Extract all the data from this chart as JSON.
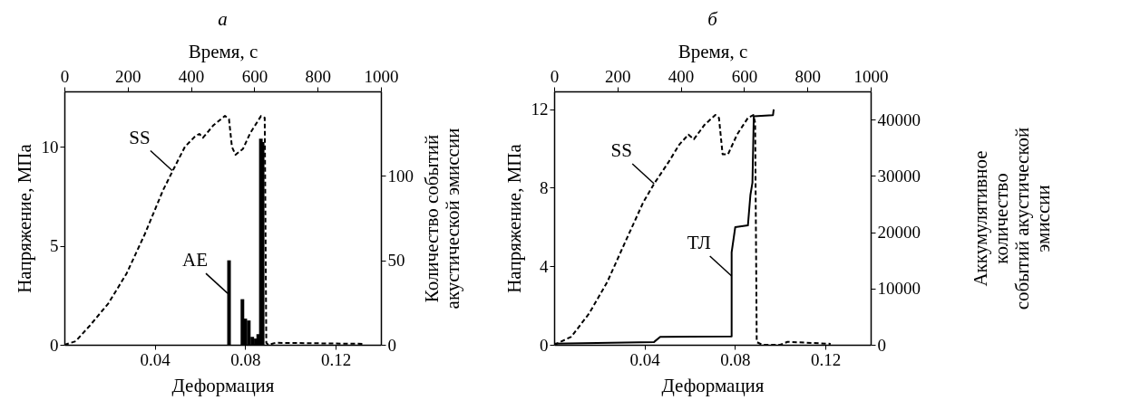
{
  "chart_data": [
    {
      "type": "line",
      "title": "а",
      "xlabel": "Деформация",
      "x2label": "Время, с",
      "ylabel": "Напряжение, МПа",
      "y2label": "Количество событий\nакустической эмиссии",
      "xlim": [
        0,
        0.14
      ],
      "xticks": [
        0.04,
        0.08,
        0.12
      ],
      "x2lim": [
        0,
        1000
      ],
      "x2ticks": [
        0,
        200,
        400,
        600,
        800,
        1000
      ],
      "ylim": [
        0,
        12.8
      ],
      "yticks": [
        0,
        5,
        10
      ],
      "y2lim": [
        0,
        150
      ],
      "y2ticks": [
        0,
        50,
        100
      ],
      "grid": false,
      "series": [
        {
          "line_style": "dashed",
          "color": "#000000",
          "axis": "y",
          "x": [
            0,
            0.005,
            0.0115,
            0.0195,
            0.0275,
            0.0356,
            0.0436,
            0.0484,
            0.0533,
            0.058,
            0.0597,
            0.0613,
            0.066,
            0.071,
            0.0728,
            0.0741,
            0.0757,
            0.079,
            0.0822,
            0.087,
            0.0886,
            0.0893,
            0.0902,
            0.0934,
            0.132
          ],
          "values": [
            0,
            0.18,
            1.0,
            2.1,
            3.6,
            5.6,
            7.8,
            8.9,
            10.0,
            10.55,
            10.65,
            10.46,
            11.1,
            11.56,
            11.4,
            10.0,
            9.6,
            9.9,
            10.7,
            11.56,
            11.47,
            0.1,
            0,
            0.1,
            0.05
          ]
        },
        {
          "type": "bar",
          "color": "#000000",
          "axis": "y2",
          "x": [
            0.0729,
            0.079,
            0.0803,
            0.0819,
            0.0835,
            0.0851,
            0.0862,
            0.0874,
            0.0882
          ],
          "values": [
            50,
            27,
            15.5,
            14.4,
            4.7,
            3.7,
            6.3,
            122,
            120
          ]
        }
      ],
      "annotations": [
        {
          "text": "SS",
          "x": 0.0477,
          "y": 8.8
        },
        {
          "text": "AE",
          "x": 0.0722,
          "y": 2.6
        }
      ]
    },
    {
      "type": "line",
      "title": "б",
      "xlabel": "Деформация",
      "x2label": "Время, с",
      "ylabel": "Напряжение, МПа",
      "y2label": "Аккумулятивное\nколичество\nсобытий акустической\nэмиссии",
      "xlim": [
        0,
        0.14
      ],
      "xticks": [
        0.04,
        0.08,
        0.12
      ],
      "x2lim": [
        0,
        1000
      ],
      "x2ticks": [
        0,
        200,
        400,
        600,
        800,
        1000
      ],
      "ylim": [
        0,
        12.9
      ],
      "yticks": [
        0,
        4,
        8,
        12
      ],
      "y2lim": [
        0,
        45000
      ],
      "y2ticks": [
        0,
        10000,
        20000,
        30000,
        40000
      ],
      "grid": false,
      "series": [
        {
          "line_style": "dashed",
          "color": "#000000",
          "axis": "y",
          "x": [
            0,
            0.0076,
            0.0155,
            0.0235,
            0.0315,
            0.0394,
            0.0442,
            0.0506,
            0.0554,
            0.0594,
            0.0618,
            0.0665,
            0.0713,
            0.0729,
            0.0745,
            0.0769,
            0.0809,
            0.0857,
            0.0881,
            0.0889,
            0.0896,
            0.092,
            0.1,
            0.1032,
            0.1223
          ],
          "values": [
            0,
            0.41,
            1.6,
            3.2,
            5.25,
            7.25,
            8.2,
            9.3,
            10.2,
            10.7,
            10.46,
            11.2,
            11.7,
            11.55,
            9.7,
            9.7,
            10.7,
            11.55,
            11.7,
            11.3,
            0.14,
            0,
            0,
            0.15,
            0.05
          ]
        },
        {
          "line_style": "solid",
          "color": "#000000",
          "axis": "y2",
          "x": [
            0,
            0.0442,
            0.0469,
            0.0785,
            0.0785,
            0.0801,
            0.0857,
            0.0868,
            0.0877,
            0.0883,
            0.0968,
            0.0971
          ],
          "values": [
            200,
            500,
            1400,
            1500,
            16400,
            20900,
            21200,
            26600,
            28800,
            40600,
            40800,
            41800
          ]
        }
      ],
      "annotations": [
        {
          "text": "SS",
          "x": 0.0442,
          "y": 8.2
        },
        {
          "text": "ТЛ",
          "x": 0.0785,
          "y": 3.5
        }
      ]
    }
  ]
}
